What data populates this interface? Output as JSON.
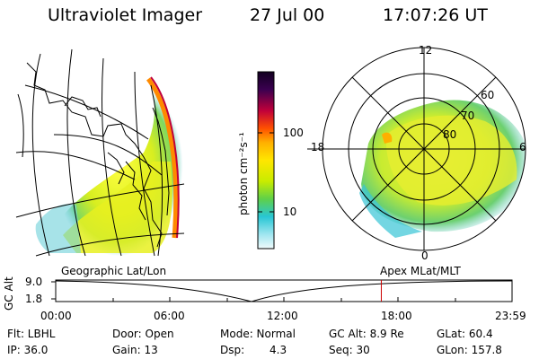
{
  "header": {
    "title": "Ultraviolet Imager",
    "date": "27 Jul 00",
    "time": "17:07:26 UT"
  },
  "colorbar": {
    "label": "photon cm⁻²s⁻¹",
    "ticks": [
      "100",
      "10"
    ],
    "scale": "log",
    "colors": [
      "#1a0030",
      "#c0003a",
      "#ff7a00",
      "#ffd400",
      "#b8e800",
      "#26c8d8",
      "#e6f8fa"
    ]
  },
  "left_panel": {
    "label": "Geographic Lat/Lon"
  },
  "right_panel": {
    "label": "Apex MLat/MLT",
    "mlt_labels": [
      "12",
      "18",
      "6",
      "0"
    ],
    "mlat_labels": [
      "60",
      "70",
      "80"
    ]
  },
  "altitude_plot": {
    "ylabel": "GC Alt",
    "y_ticks": [
      "9.0",
      "1.8"
    ],
    "x_ticks": [
      "00:00",
      "06:00",
      "12:00",
      "18:00",
      "23:59"
    ],
    "current_time_fraction": 0.7135,
    "marker_color": "#cc0000"
  },
  "info": {
    "flt": "Flt: LBHL",
    "ip": "IP: 36.0",
    "door": "Door: Open",
    "gain": "Gain: 13",
    "mode": "Mode: Normal",
    "dsp_label": "Dsp:",
    "dsp_value": "4.3",
    "gcalt": "GC Alt: 8.9 Re",
    "seq": "Seq: 30",
    "glat": "GLat: 60.4",
    "glon": "GLon: 157.8"
  }
}
